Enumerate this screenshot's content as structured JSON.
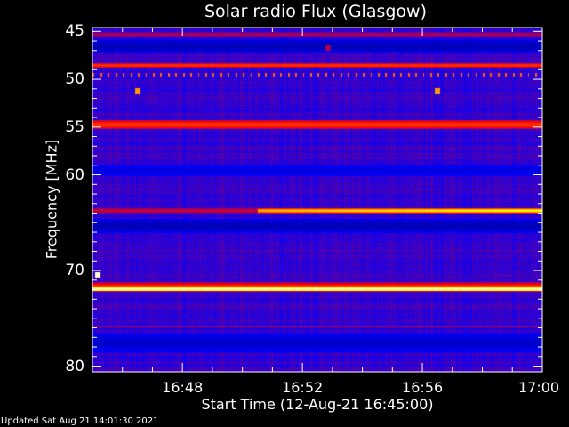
{
  "chart_data": {
    "type": "heatmap",
    "title": "Solar radio Flux (Glasgow)",
    "xlabel": "Start Time (12-Aug-21 16:45:00)",
    "ylabel": "Frequency [MHz]",
    "x_range": [
      "16:45:00",
      "17:00:00"
    ],
    "y_range_mhz": [
      44.6,
      80.6
    ],
    "y_inverted": true,
    "x_ticks": [
      "16:48",
      "16:52",
      "16:56",
      "17:00"
    ],
    "y_ticks": [
      "45",
      "50",
      "55",
      "60",
      "70",
      "80"
    ],
    "colormap": [
      "#000000",
      "#0000ff",
      "#ff0000",
      "#ffff00",
      "#ffffff"
    ],
    "background_intensity": 0.3,
    "bands": [
      {
        "freq_mhz": 45.3,
        "width_mhz": 0.5,
        "intensity": 0.42,
        "t_start_min": 0,
        "t_end_min": 15
      },
      {
        "freq_mhz": 46.5,
        "width_mhz": 1.5,
        "intensity": 0.18,
        "t_start_min": 0,
        "t_end_min": 15
      },
      {
        "freq_mhz": 48.5,
        "width_mhz": 0.5,
        "intensity": 0.55,
        "t_start_min": 0,
        "t_end_min": 15
      },
      {
        "freq_mhz": 54.7,
        "width_mhz": 1.0,
        "intensity": 0.55,
        "t_start_min": 0,
        "t_end_min": 15
      },
      {
        "freq_mhz": 59.5,
        "width_mhz": 1.2,
        "intensity": 0.22,
        "t_start_min": 0,
        "t_end_min": 15
      },
      {
        "freq_mhz": 63.7,
        "width_mhz": 0.5,
        "intensity": 0.45,
        "t_start_min": 0,
        "t_end_min": 5.5
      },
      {
        "freq_mhz": 63.7,
        "width_mhz": 0.5,
        "intensity": 0.68,
        "t_start_min": 5.5,
        "t_end_min": 15
      },
      {
        "freq_mhz": 65.3,
        "width_mhz": 1.5,
        "intensity": 0.18,
        "t_start_min": 0,
        "t_end_min": 15
      },
      {
        "freq_mhz": 71.7,
        "width_mhz": 1.0,
        "intensity": 0.55,
        "t_start_min": 0,
        "t_end_min": 15
      },
      {
        "freq_mhz": 71.9,
        "width_mhz": 0.45,
        "intensity": 0.9,
        "t_start_min": 0,
        "t_end_min": 15
      },
      {
        "freq_mhz": 75.8,
        "width_mhz": 0.25,
        "intensity": 0.4,
        "t_start_min": 0,
        "t_end_min": 15
      },
      {
        "freq_mhz": 77.5,
        "width_mhz": 2.0,
        "intensity": 0.2,
        "t_start_min": 0,
        "t_end_min": 15
      }
    ],
    "periodic_spikes": {
      "freq_mhz": 49.5,
      "interval_min": 0.25,
      "intensity": 0.6
    },
    "spots": [
      {
        "time": "16:46:30",
        "freq_mhz": 51.2,
        "intensity": 0.65
      },
      {
        "time": "16:56:30",
        "freq_mhz": 51.2,
        "intensity": 0.65
      },
      {
        "time": "16:45:10",
        "freq_mhz": 70.4,
        "intensity": 0.95
      },
      {
        "time": "16:52:50",
        "freq_mhz": 46.7,
        "intensity": 0.42
      }
    ]
  },
  "footer": {
    "updated": "Updated Sat Aug 21 14:01:30 2021"
  }
}
